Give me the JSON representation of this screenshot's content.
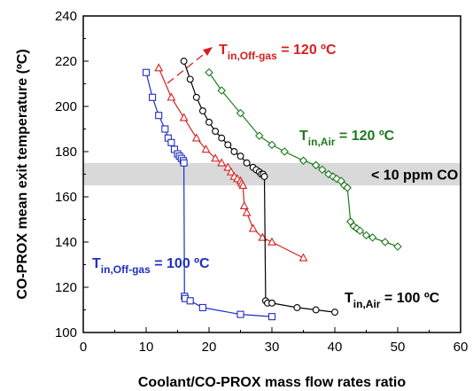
{
  "chart_data": {
    "type": "scatter",
    "xlabel": "Coolant/CO-PROX mass flow rates ratio",
    "ylabel": "CO-PROX mean exit temperature (ºC)",
    "xlim": [
      0,
      60
    ],
    "ylim": [
      100,
      240
    ],
    "x_ticks": [
      0,
      10,
      20,
      30,
      40,
      50,
      60
    ],
    "y_ticks": [
      100,
      120,
      140,
      160,
      180,
      200,
      220,
      240
    ],
    "grid": false,
    "band": {
      "y_from": 165,
      "y_to": 175,
      "color": "#d9d9d9",
      "label": "< 10 ppm CO"
    },
    "series": [
      {
        "color": "#1f2fbf",
        "marker": "square",
        "x": [
          10,
          11,
          12,
          13,
          13.5,
          14,
          14.5,
          15,
          15.3,
          15.6,
          15.9,
          16.0,
          16.1,
          16.2,
          17,
          19,
          25,
          30
        ],
        "y": [
          215,
          204,
          196,
          190,
          186,
          184,
          181,
          179,
          178,
          177,
          176,
          175,
          116,
          115,
          114,
          111,
          108,
          107
        ],
        "label_main": "T",
        "label_sub": "in,Off-gas",
        "label_rest": " = 100 ºC"
      },
      {
        "color": "#d62020",
        "marker": "triangle",
        "x": [
          12,
          14,
          16,
          18,
          19.5,
          21,
          22,
          23,
          23.5,
          24,
          24.5,
          25,
          25.2,
          25.4,
          25.6,
          26,
          27,
          28.5,
          30,
          35
        ],
        "y": [
          217,
          204,
          195,
          186,
          181,
          177,
          175,
          173,
          171,
          169,
          168,
          167,
          166,
          165,
          156,
          153,
          146,
          142,
          140,
          133
        ],
        "label_main": "T",
        "label_sub": "in,Off-gas",
        "label_rest": " = 120 ºC"
      },
      {
        "color": "#000000",
        "marker": "circle",
        "x": [
          16,
          17,
          18,
          19,
          20,
          21,
          22,
          23,
          24,
          25,
          26,
          27,
          27.5,
          28,
          28.3,
          28.6,
          28.8,
          29,
          29.3,
          30,
          34,
          37,
          40
        ],
        "y": [
          220,
          212,
          204,
          198,
          193,
          189,
          186,
          183,
          180,
          178,
          175,
          173,
          172,
          171,
          170,
          170,
          169,
          114,
          113,
          113,
          111,
          110,
          109
        ],
        "label_main": "T",
        "label_sub": "in,Air",
        "label_rest": " = 100 ºC"
      },
      {
        "color": "#1e7a1e",
        "marker": "diamond",
        "x": [
          20,
          22,
          25,
          28,
          30,
          32,
          35,
          37,
          38,
          39,
          39.7,
          40.3,
          41,
          41.5,
          42,
          42.5,
          43,
          43.5,
          44,
          45,
          46,
          48,
          50
        ],
        "y": [
          215,
          207,
          197,
          187,
          183,
          180,
          176,
          174,
          172,
          170,
          169,
          168,
          167,
          165,
          164,
          149,
          147,
          146,
          145,
          143,
          142,
          140,
          138
        ],
        "label_main": "T",
        "label_sub": "in,Air",
        "label_rest": " = 120 ºC"
      }
    ]
  }
}
